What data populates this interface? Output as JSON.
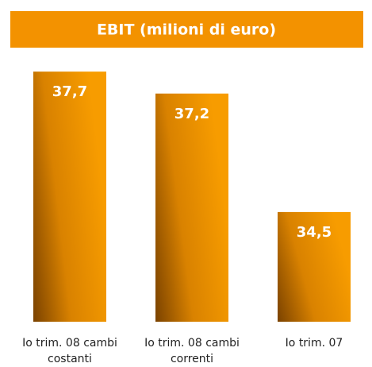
{
  "chart_data": {
    "type": "bar",
    "title": "EBIT (milioni di euro)",
    "categories": [
      "Io trim. 08 cambi costanti",
      "Io trim. 08 cambi correnti",
      "Io trim. 07"
    ],
    "values": [
      37.7,
      37.2,
      34.5
    ],
    "value_labels": [
      "37,7",
      "37,2",
      "34,5"
    ],
    "color": "#f39200",
    "ylim": [
      32,
      38.3
    ]
  }
}
